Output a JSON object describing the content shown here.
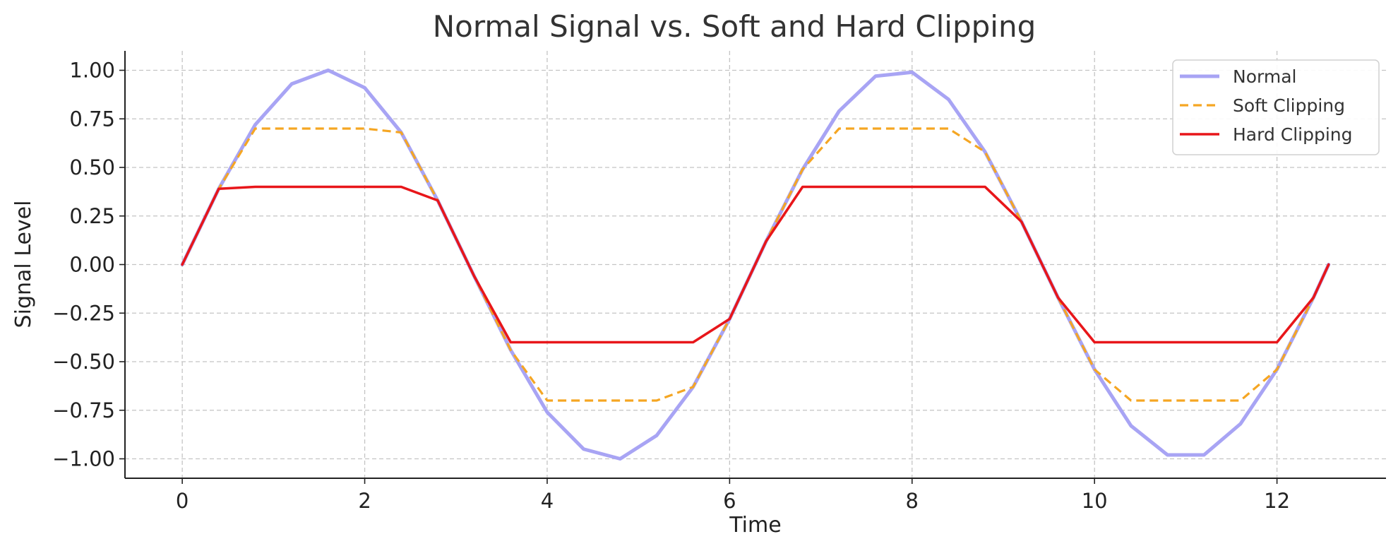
{
  "chart_data": {
    "type": "line",
    "title": "Normal Signal vs. Soft and Hard Clipping",
    "xlabel": "Time",
    "ylabel": "Signal Level",
    "xlim": [
      -0.628,
      13.195
    ],
    "ylim": [
      -1.1,
      1.1
    ],
    "xticks": [
      0,
      2,
      4,
      6,
      8,
      10,
      12
    ],
    "xtick_labels": [
      "0",
      "2",
      "4",
      "6",
      "8",
      "10",
      "12"
    ],
    "yticks": [
      1.0,
      0.75,
      0.5,
      0.25,
      0.0,
      -0.25,
      -0.5,
      -0.75,
      -1.0
    ],
    "ytick_labels": [
      "1.00",
      "0.75",
      "0.50",
      "0.25",
      "0.00",
      "−0.25",
      "−0.50",
      "−0.75",
      "−1.00"
    ],
    "grid": true,
    "legend_position": "top-right",
    "x": [
      0,
      0.4,
      0.8,
      1.2,
      1.6,
      2.0,
      2.4,
      2.8,
      3.2,
      3.6,
      4.0,
      4.4,
      4.8,
      5.2,
      5.6,
      6.0,
      6.4,
      6.8,
      7.2,
      7.6,
      8.0,
      8.4,
      8.8,
      9.2,
      9.6,
      10.0,
      10.4,
      10.8,
      11.2,
      11.6,
      12.0,
      12.4,
      12.566
    ],
    "series": [
      {
        "name": "Normal",
        "color": "#a8a4f4",
        "style": "solid",
        "values": [
          0,
          0.39,
          0.72,
          0.93,
          1.0,
          0.91,
          0.68,
          0.33,
          -0.06,
          -0.44,
          -0.76,
          -0.95,
          -1.0,
          -0.88,
          -0.63,
          -0.28,
          0.12,
          0.49,
          0.79,
          0.97,
          0.99,
          0.85,
          0.58,
          0.22,
          -0.17,
          -0.54,
          -0.83,
          -0.98,
          -0.98,
          -0.82,
          -0.54,
          -0.17,
          0
        ]
      },
      {
        "name": "Soft Clipping",
        "color": "#f5a623",
        "style": "dashed",
        "values": [
          0,
          0.39,
          0.7,
          0.7,
          0.7,
          0.7,
          0.68,
          0.33,
          -0.06,
          -0.44,
          -0.7,
          -0.7,
          -0.7,
          -0.7,
          -0.63,
          -0.28,
          0.12,
          0.49,
          0.7,
          0.7,
          0.7,
          0.7,
          0.58,
          0.22,
          -0.17,
          -0.54,
          -0.7,
          -0.7,
          -0.7,
          -0.7,
          -0.54,
          -0.17,
          0
        ]
      },
      {
        "name": "Hard Clipping",
        "color": "#e8161a",
        "style": "solid",
        "values": [
          0,
          0.39,
          0.4,
          0.4,
          0.4,
          0.4,
          0.4,
          0.33,
          -0.06,
          -0.4,
          -0.4,
          -0.4,
          -0.4,
          -0.4,
          -0.4,
          -0.28,
          0.12,
          0.4,
          0.4,
          0.4,
          0.4,
          0.4,
          0.4,
          0.22,
          -0.17,
          -0.4,
          -0.4,
          -0.4,
          -0.4,
          -0.4,
          -0.4,
          -0.17,
          0
        ]
      }
    ]
  }
}
